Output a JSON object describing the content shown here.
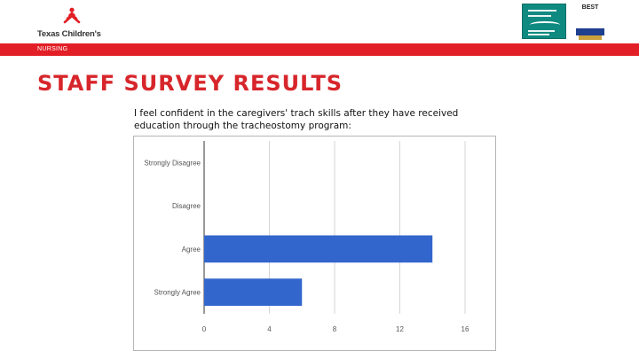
{
  "header": {
    "logo_text": "Texas Children's",
    "nursing_label": "NURSING",
    "badge_best_text": "BEST"
  },
  "slide": {
    "title": "STAFF SURVEY RESULTS",
    "question": "I feel confident in the caregivers' trach skills after they have received education through the tracheostomy program:"
  },
  "colors": {
    "brand_red": "#e21f26",
    "title_red": "#d7262b",
    "bar_blue": "#3366cc"
  },
  "chart_data": {
    "type": "bar",
    "orientation": "horizontal",
    "categories": [
      "Strongly Disagree",
      "Disagree",
      "Agree",
      "Strongly Agree"
    ],
    "values": [
      0,
      0,
      14,
      6
    ],
    "xticks": [
      0,
      4,
      8,
      12,
      16
    ],
    "xlim": [
      0,
      16
    ],
    "title": "",
    "xlabel": "",
    "ylabel": "",
    "grid": true,
    "legend": "none"
  }
}
